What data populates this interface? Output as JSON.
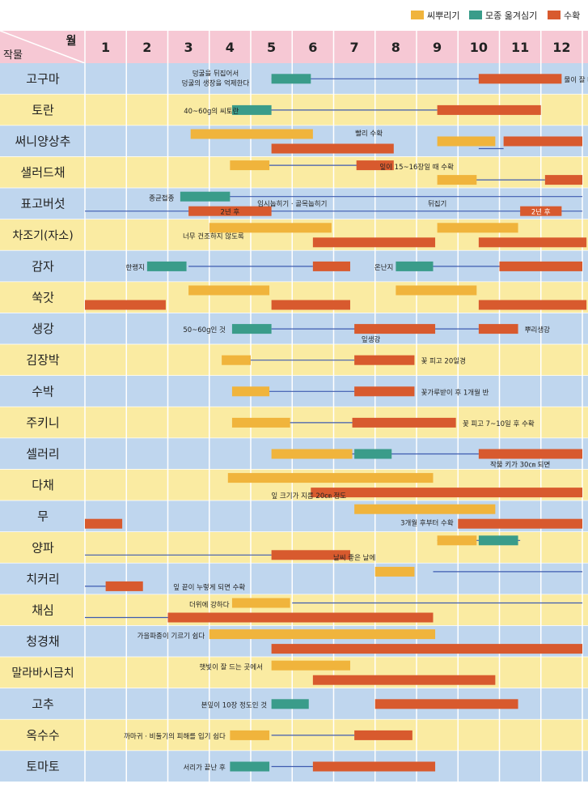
{
  "legend": {
    "sow": "씨뿌리기",
    "transplant": "모종 옮겨심기",
    "harvest": "수확"
  },
  "colors": {
    "sow": "#f0b43c",
    "transplant": "#3a9c8a",
    "harvest": "#d85a2e",
    "line": "#3e5bb0",
    "header": "#f6c8d4",
    "rowA": "#bfd6ee",
    "rowB": "#faeba2",
    "text": "#222222"
  },
  "header": {
    "month_label": "월",
    "crop_label": "작물"
  },
  "chart_data": {
    "type": "gantt",
    "x_unit": "month",
    "months": [
      "1",
      "2",
      "3",
      "4",
      "5",
      "6",
      "7",
      "8",
      "9",
      "10",
      "11",
      "12"
    ],
    "crops": [
      {
        "name": "고구마",
        "notes": [
          "덩굴을 뒤집어서",
          "덩굴의 생장을 억제한다",
          "물이 잘 빠지게"
        ],
        "lines": [
          {
            "y": 0,
            "from": 5.0,
            "to": 10.0
          }
        ],
        "bars": [
          {
            "kind": "transplant",
            "from": 5.0,
            "to": 5.95,
            "y": 0
          },
          {
            "kind": "harvest",
            "from": 10.0,
            "to": 12.0,
            "y": 0
          }
        ]
      },
      {
        "name": "토란",
        "notes": [
          "40~60g의 씨토란"
        ],
        "lines": [
          {
            "y": 0,
            "from": 4.5,
            "to": 9.0
          }
        ],
        "bars": [
          {
            "kind": "transplant",
            "from": 4.05,
            "to": 5.0,
            "y": 0
          },
          {
            "kind": "harvest",
            "from": 9.0,
            "to": 11.5,
            "y": 0
          }
        ]
      },
      {
        "name": "써니양상추",
        "notes": [
          "빨리 수확"
        ],
        "lines": [
          {
            "y": 1,
            "from": 10.0,
            "to": 10.6
          }
        ],
        "bars": [
          {
            "kind": "sow",
            "from": 3.05,
            "to": 6.0,
            "y": -1
          },
          {
            "kind": "harvest",
            "from": 5.0,
            "to": 7.95,
            "y": 1
          },
          {
            "kind": "sow",
            "from": 9.0,
            "to": 10.4,
            "y": 0
          },
          {
            "kind": "harvest",
            "from": 10.6,
            "to": 12.5,
            "y": 0
          }
        ]
      },
      {
        "name": "샐러드채",
        "notes": [
          "잎이 15~16장일 때 수확"
        ],
        "lines": [
          {
            "y": -1,
            "from": 4.4,
            "to": 7.1
          },
          {
            "y": 1,
            "from": 9.4,
            "to": 11.6
          }
        ],
        "bars": [
          {
            "kind": "sow",
            "from": 4.0,
            "to": 4.95,
            "y": -1
          },
          {
            "kind": "harvest",
            "from": 7.05,
            "to": 7.95,
            "y": -1
          },
          {
            "kind": "sow",
            "from": 9.0,
            "to": 9.95,
            "y": 1
          },
          {
            "kind": "harvest",
            "from": 11.6,
            "to": 12.5,
            "y": 1
          }
        ]
      },
      {
        "name": "표고버섯",
        "notes": [
          "종균접종",
          "임시눕히기 · 골목눕히기",
          "뒤집기",
          "2년 후",
          "2년 후"
        ],
        "lines": [
          {
            "y": -1,
            "from": 3.5,
            "to": 12.5
          },
          {
            "y": 1,
            "from": 0.5,
            "to": 12.5
          }
        ],
        "bars": [
          {
            "kind": "transplant",
            "from": 2.8,
            "to": 4.0,
            "y": -1
          },
          {
            "kind": "harvest",
            "from": 3.0,
            "to": 5.0,
            "y": 1
          },
          {
            "kind": "harvest",
            "from": 11.0,
            "to": 12.0,
            "y": 1
          }
        ]
      },
      {
        "name": "차조기(자소)",
        "notes": [
          "너무 건조하지 않도록"
        ],
        "lines": [],
        "bars": [
          {
            "kind": "sow",
            "from": 3.5,
            "to": 6.45,
            "y": -1
          },
          {
            "kind": "harvest",
            "from": 6.0,
            "to": 8.95,
            "y": 1
          },
          {
            "kind": "sow",
            "from": 9.0,
            "to": 10.95,
            "y": -1
          },
          {
            "kind": "harvest",
            "from": 10.0,
            "to": 12.6,
            "y": 1
          }
        ]
      },
      {
        "name": "감자",
        "notes": [
          "한랭지",
          "온난지"
        ],
        "lines": [
          {
            "y": 0,
            "from": 3.0,
            "to": 6.0
          },
          {
            "y": 0,
            "from": 8.5,
            "to": 10.5
          }
        ],
        "bars": [
          {
            "kind": "transplant",
            "from": 2.0,
            "to": 2.95,
            "y": 0
          },
          {
            "kind": "harvest",
            "from": 6.0,
            "to": 6.9,
            "y": 0
          },
          {
            "kind": "transplant",
            "from": 8.0,
            "to": 8.9,
            "y": 0
          },
          {
            "kind": "harvest",
            "from": 10.5,
            "to": 12.5,
            "y": 0
          }
        ]
      },
      {
        "name": "쑥갓",
        "notes": [],
        "lines": [],
        "bars": [
          {
            "kind": "sow",
            "from": 3.0,
            "to": 4.95,
            "y": -1
          },
          {
            "kind": "harvest",
            "from": 5.0,
            "to": 6.9,
            "y": 1
          },
          {
            "kind": "sow",
            "from": 8.0,
            "to": 9.95,
            "y": -1
          },
          {
            "kind": "harvest",
            "from": 10.0,
            "to": 12.6,
            "y": 1
          },
          {
            "kind": "harvest",
            "from": 0.5,
            "to": 2.45,
            "y": 1
          }
        ]
      },
      {
        "name": "생강",
        "notes": [
          "50~60g인 것",
          "잎생강",
          "뿌리생강"
        ],
        "lines": [
          {
            "y": 0,
            "from": 5.0,
            "to": 10.0
          }
        ],
        "bars": [
          {
            "kind": "transplant",
            "from": 4.05,
            "to": 5.0,
            "y": 0
          },
          {
            "kind": "harvest",
            "from": 7.0,
            "to": 8.95,
            "y": 0
          },
          {
            "kind": "harvest",
            "from": 10.0,
            "to": 10.95,
            "y": 0
          }
        ]
      },
      {
        "name": "김장박",
        "notes": [
          "꽃 피고 20일경"
        ],
        "lines": [
          {
            "y": 0,
            "from": 4.5,
            "to": 7.0
          }
        ],
        "bars": [
          {
            "kind": "sow",
            "from": 3.8,
            "to": 4.5,
            "y": 0
          },
          {
            "kind": "harvest",
            "from": 7.0,
            "to": 8.45,
            "y": 0
          }
        ]
      },
      {
        "name": "수박",
        "notes": [
          "꽃가루받이 후 1개월 반"
        ],
        "lines": [
          {
            "y": 0,
            "from": 4.5,
            "to": 7.0
          }
        ],
        "bars": [
          {
            "kind": "sow",
            "from": 4.05,
            "to": 4.95,
            "y": 0
          },
          {
            "kind": "harvest",
            "from": 7.0,
            "to": 8.45,
            "y": 0
          }
        ]
      },
      {
        "name": "주키니",
        "notes": [
          "꽃 피고 7~10일 후 수확"
        ],
        "lines": [
          {
            "y": 0,
            "from": 5.0,
            "to": 7.0
          }
        ],
        "bars": [
          {
            "kind": "sow",
            "from": 4.05,
            "to": 5.45,
            "y": 0
          },
          {
            "kind": "harvest",
            "from": 6.95,
            "to": 9.45,
            "y": 0
          }
        ]
      },
      {
        "name": "셀러리",
        "notes": [
          "작물 키가 30㎝ 되면"
        ],
        "lines": [
          {
            "y": 0,
            "from": 6.5,
            "to": 10.0
          }
        ],
        "bars": [
          {
            "kind": "sow",
            "from": 5.0,
            "to": 6.95,
            "y": 0
          },
          {
            "kind": "transplant",
            "from": 7.0,
            "to": 7.9,
            "y": 0
          },
          {
            "kind": "harvest",
            "from": 10.0,
            "to": 12.5,
            "y": 0
          }
        ]
      },
      {
        "name": "다채",
        "notes": [
          "잎 크기가 지름 20㎝ 정도"
        ],
        "lines": [],
        "bars": [
          {
            "kind": "sow",
            "from": 3.95,
            "to": 8.9,
            "y": -1
          },
          {
            "kind": "harvest",
            "from": 5.95,
            "to": 12.5,
            "y": 1
          }
        ]
      },
      {
        "name": "무",
        "notes": [
          "3개월 후부터 수확"
        ],
        "lines": [],
        "bars": [
          {
            "kind": "harvest",
            "from": 0.5,
            "to": 1.4,
            "y": 1
          },
          {
            "kind": "sow",
            "from": 7.0,
            "to": 10.4,
            "y": -1
          },
          {
            "kind": "harvest",
            "from": 9.5,
            "to": 12.5,
            "y": 1
          }
        ]
      },
      {
        "name": "양파",
        "notes": [
          "날씨 좋은 날에"
        ],
        "lines": [
          {
            "y": -1,
            "from": 9.0,
            "to": 11.0
          },
          {
            "y": 1,
            "from": 0.5,
            "to": 5.0
          }
        ],
        "bars": [
          {
            "kind": "sow",
            "from": 9.0,
            "to": 9.95,
            "y": -1
          },
          {
            "kind": "transplant",
            "from": 10.0,
            "to": 10.95,
            "y": -1
          },
          {
            "kind": "harvest",
            "from": 5.0,
            "to": 6.9,
            "y": 1
          }
        ]
      },
      {
        "name": "치커리",
        "notes": [
          "잎 끝이 누렇게 되면 수확"
        ],
        "lines": [
          {
            "y": -1,
            "from": 8.9,
            "to": 12.5
          },
          {
            "y": 1,
            "from": 0.5,
            "to": 1.0
          }
        ],
        "bars": [
          {
            "kind": "sow",
            "from": 7.5,
            "to": 8.45,
            "y": -1
          },
          {
            "kind": "harvest",
            "from": 1.0,
            "to": 1.9,
            "y": 1
          }
        ]
      },
      {
        "name": "채심",
        "notes": [
          "더위에 강하다"
        ],
        "lines": [
          {
            "y": -1,
            "from": 5.5,
            "to": 12.5
          },
          {
            "y": 1,
            "from": 0.5,
            "to": 2.5
          }
        ],
        "bars": [
          {
            "kind": "sow",
            "from": 4.05,
            "to": 5.45,
            "y": -1
          },
          {
            "kind": "harvest",
            "from": 2.5,
            "to": 8.9,
            "y": 1
          }
        ]
      },
      {
        "name": "청경채",
        "notes": [
          "가을파종이 기르기 쉽다"
        ],
        "lines": [],
        "bars": [
          {
            "kind": "sow",
            "from": 3.5,
            "to": 8.95,
            "y": -1
          },
          {
            "kind": "harvest",
            "from": 5.0,
            "to": 12.5,
            "y": 1
          }
        ]
      },
      {
        "name": "말라바시금치",
        "notes": [
          "햇빛이 잘 드는 곳에서"
        ],
        "lines": [],
        "bars": [
          {
            "kind": "sow",
            "from": 5.0,
            "to": 6.9,
            "y": -1
          },
          {
            "kind": "harvest",
            "from": 6.0,
            "to": 10.4,
            "y": 1
          }
        ]
      },
      {
        "name": "고추",
        "notes": [
          "본잎이 10장 정도인 것"
        ],
        "lines": [],
        "bars": [
          {
            "kind": "transplant",
            "from": 5.0,
            "to": 5.9,
            "y": 0
          },
          {
            "kind": "harvest",
            "from": 7.5,
            "to": 10.95,
            "y": 0
          }
        ]
      },
      {
        "name": "옥수수",
        "notes": [
          "까마귀 · 비둘기의 피해를 입기 쉽다"
        ],
        "lines": [
          {
            "y": 0,
            "from": 5.0,
            "to": 7.0
          }
        ],
        "bars": [
          {
            "kind": "sow",
            "from": 4.0,
            "to": 4.95,
            "y": 0
          },
          {
            "kind": "harvest",
            "from": 7.0,
            "to": 8.4,
            "y": 0
          }
        ]
      },
      {
        "name": "토마토",
        "notes": [
          "서리가 끝난 후"
        ],
        "lines": [
          {
            "y": 0,
            "from": 5.0,
            "to": 6.0
          }
        ],
        "bars": [
          {
            "kind": "transplant",
            "from": 4.0,
            "to": 4.95,
            "y": 0
          },
          {
            "kind": "harvest",
            "from": 6.0,
            "to": 8.95,
            "y": 0
          }
        ]
      }
    ]
  }
}
